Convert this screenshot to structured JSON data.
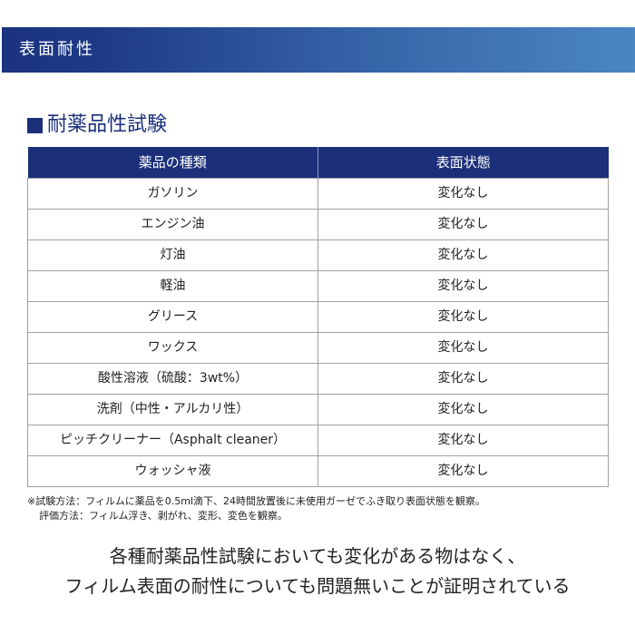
{
  "banner": {
    "title": "表面耐性"
  },
  "section": {
    "title": "耐薬品性試験"
  },
  "table": {
    "headers": [
      "薬品の種類",
      "表面状態"
    ],
    "rows": [
      {
        "chemical": "ガソリン",
        "result": "変化なし"
      },
      {
        "chemical": "エンジン油",
        "result": "変化なし"
      },
      {
        "chemical": "灯油",
        "result": "変化なし"
      },
      {
        "chemical": "軽油",
        "result": "変化なし"
      },
      {
        "chemical": "グリース",
        "result": "変化なし"
      },
      {
        "chemical": "ワックス",
        "result": "変化なし"
      },
      {
        "chemical": "酸性溶液（硫酸：3wt%）",
        "result": "変化なし"
      },
      {
        "chemical": "洗剤（中性・アルカリ性）",
        "result": "変化なし"
      },
      {
        "chemical": "ピッチクリーナー（Asphalt cleaner）",
        "result": "変化なし"
      },
      {
        "chemical": "ウォッシャ液",
        "result": "変化なし"
      }
    ]
  },
  "notes": [
    "※試験方法：フィルムに薬品を0.5ml滴下、24時間放置後に未使用ガーゼでふき取り表面状態を観察。",
    "評価方法：フィルム浮き、剥がれ、変形、変色を観察。"
  ],
  "conclusion": [
    "各種耐薬品性試験においても変化がある物はなく、",
    "フィルム表面の耐性についても問題無いことが証明されている"
  ],
  "colors": {
    "navy": "#1b2f7a",
    "banner_end": "#4a86c4"
  }
}
